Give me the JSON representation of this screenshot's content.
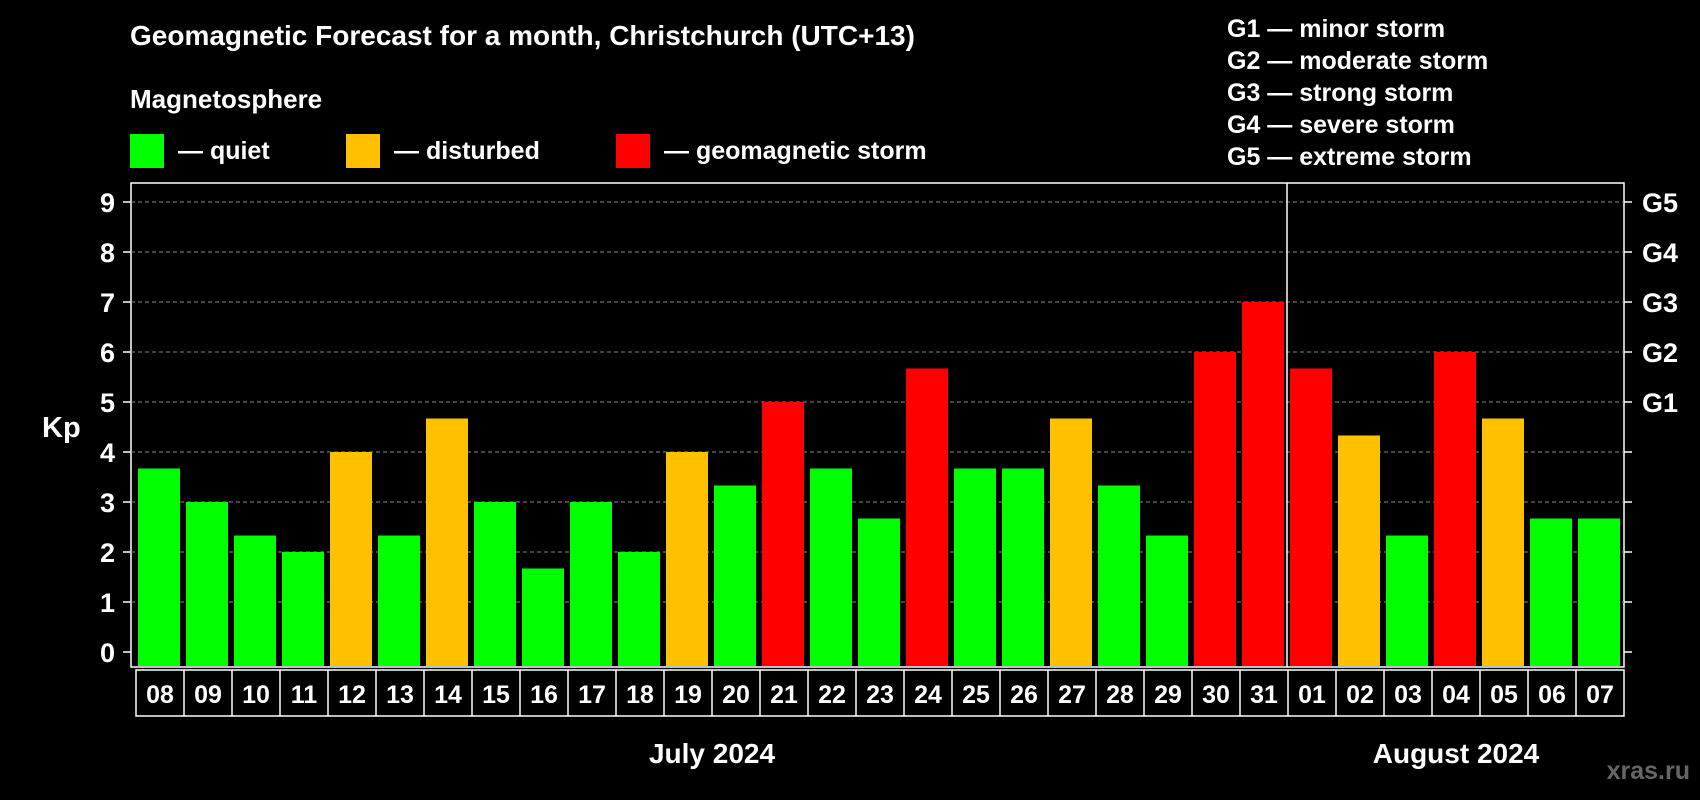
{
  "title": "Geomagnetic Forecast for a month, Christchurch (UTC+13)",
  "legend": {
    "heading": "Magnetosphere",
    "items": [
      {
        "label": "— quiet",
        "color": "#00ff00"
      },
      {
        "label": "— disturbed",
        "color": "#ffc000"
      },
      {
        "label": "— geomagnetic storm",
        "color": "#ff0000"
      }
    ]
  },
  "storm_scale": [
    "G1 — minor storm",
    "G2 — moderate storm",
    "G3 — strong storm",
    "G4 — severe storm",
    "G5 — extreme storm"
  ],
  "watermark": "xras.ru",
  "chart_data": {
    "type": "bar",
    "ylabel": "Kp",
    "ylim": [
      0,
      9
    ],
    "yticks": [
      "0",
      "1",
      "2",
      "3",
      "4",
      "5",
      "6",
      "7",
      "8",
      "9"
    ],
    "right_axis_labels": [
      {
        "value": 5,
        "label": "G1"
      },
      {
        "value": 6,
        "label": "G2"
      },
      {
        "value": 7,
        "label": "G3"
      },
      {
        "value": 8,
        "label": "G4"
      },
      {
        "value": 9,
        "label": "G5"
      }
    ],
    "grid": "horizontal dashed",
    "categories": [
      "08",
      "09",
      "10",
      "11",
      "12",
      "13",
      "14",
      "15",
      "16",
      "17",
      "18",
      "19",
      "20",
      "21",
      "22",
      "23",
      "24",
      "25",
      "26",
      "27",
      "28",
      "29",
      "30",
      "31",
      "01",
      "02",
      "03",
      "04",
      "05",
      "06",
      "07"
    ],
    "values": [
      3.67,
      3,
      2.33,
      2,
      4,
      2.33,
      4.67,
      3,
      1.67,
      3,
      2,
      4,
      3.33,
      5,
      3.67,
      2.67,
      5.67,
      3.67,
      3.67,
      4.67,
      3.33,
      2.33,
      6,
      7,
      5.67,
      4.33,
      2.33,
      6,
      4.67,
      2.67,
      2.67
    ],
    "levels": [
      "quiet",
      "quiet",
      "quiet",
      "quiet",
      "disturbed",
      "quiet",
      "disturbed",
      "quiet",
      "quiet",
      "quiet",
      "quiet",
      "disturbed",
      "quiet",
      "storm",
      "quiet",
      "quiet",
      "storm",
      "quiet",
      "quiet",
      "disturbed",
      "quiet",
      "quiet",
      "storm",
      "storm",
      "storm",
      "disturbed",
      "quiet",
      "storm",
      "disturbed",
      "quiet",
      "quiet"
    ],
    "level_colors": {
      "quiet": "#00ff00",
      "disturbed": "#ffc000",
      "storm": "#ff0000"
    },
    "month_groups": [
      {
        "label": "July 2024",
        "from": 0,
        "to": 23
      },
      {
        "label": "August 2024",
        "from": 24,
        "to": 30
      }
    ]
  }
}
